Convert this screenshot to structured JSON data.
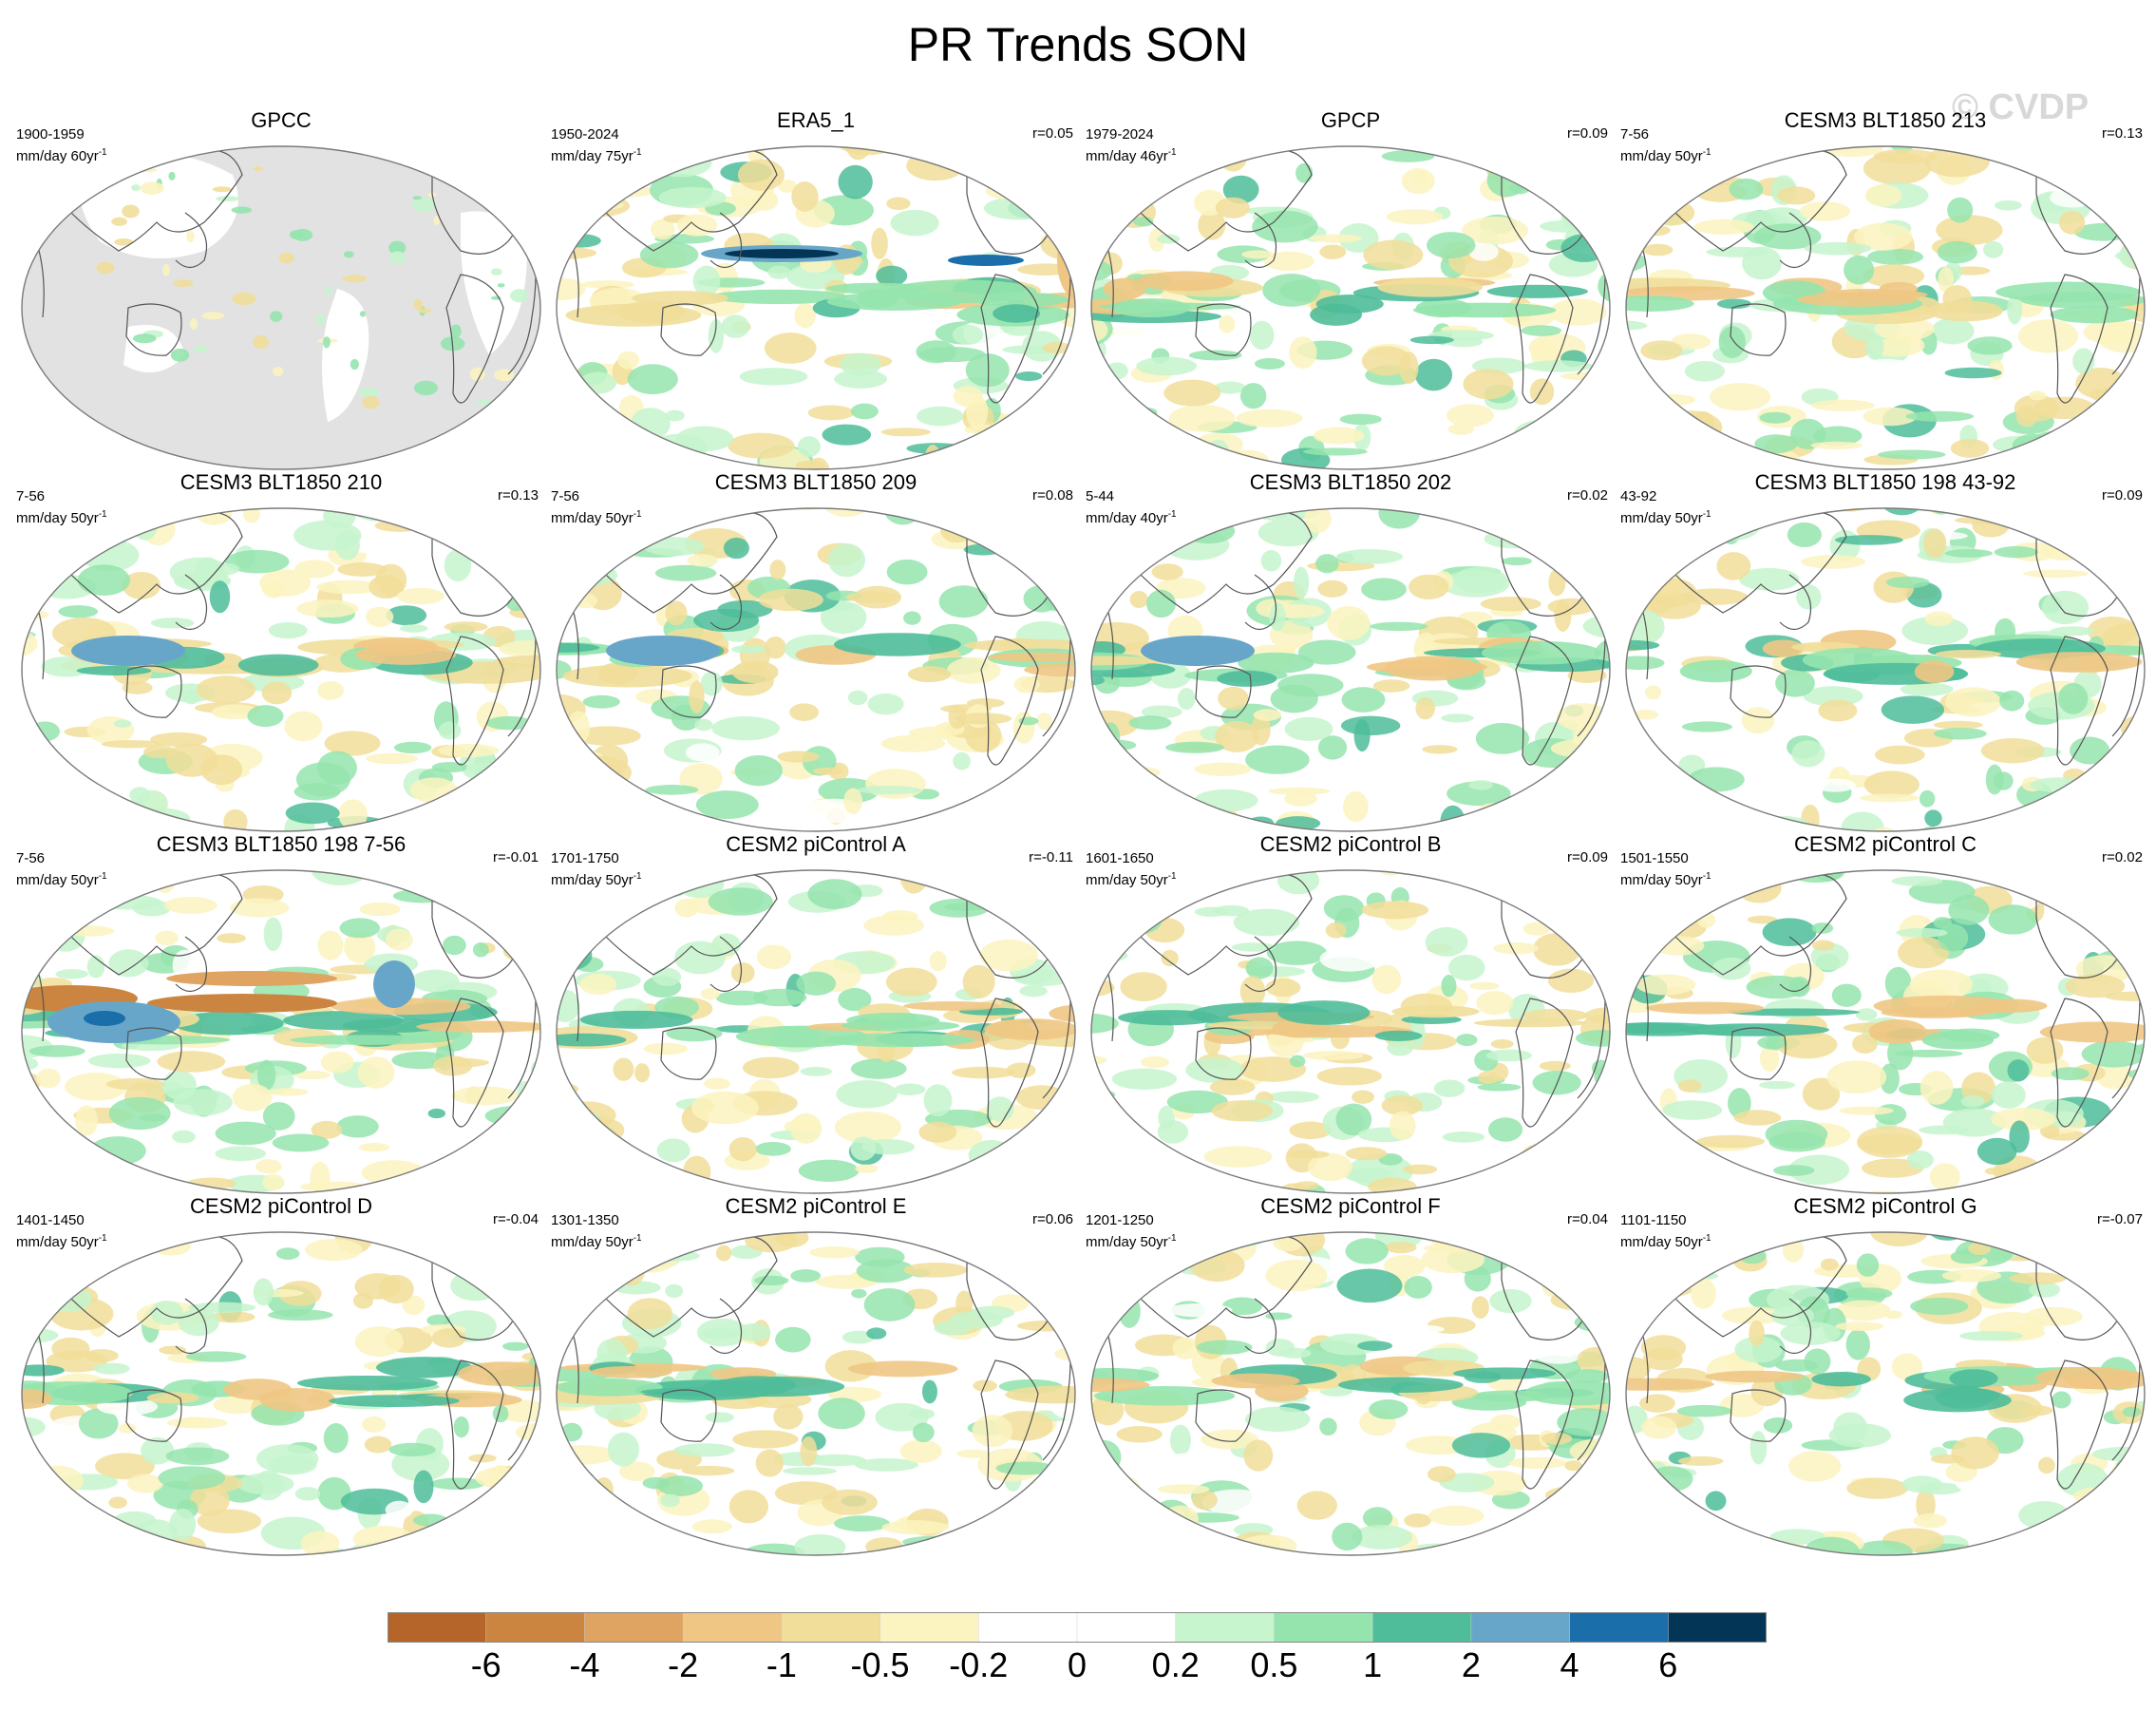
{
  "title": "PR Trends SON",
  "watermark": "© CVDP",
  "colors": {
    "land_missing": "#e2e2e2",
    "coastline": "#555555",
    "levels": [
      "#b5652a",
      "#cc8540",
      "#dfa462",
      "#efc684",
      "#f1de9a",
      "#fbf3c0",
      "#ffffff",
      "#ffffff",
      "#c6f5ce",
      "#95e4ae",
      "#4fbd9a",
      "#68a6c9",
      "#1a6eaa",
      "#033556"
    ]
  },
  "panels": [
    {
      "title": "GPCC",
      "period": "1900-1959",
      "units": "mm/day 60yr",
      "units_sup": "-1",
      "r": ""
    },
    {
      "title": "ERA5_1",
      "period": "1950-2024",
      "units": "mm/day 75yr",
      "units_sup": "-1",
      "r": "r=0.05"
    },
    {
      "title": "GPCP",
      "period": "1979-2024",
      "units": "mm/day 46yr",
      "units_sup": "-1",
      "r": "r=0.09"
    },
    {
      "title": "CESM3 BLT1850 213",
      "period": "7-56",
      "units": "mm/day 50yr",
      "units_sup": "-1",
      "r": "r=0.13"
    },
    {
      "title": "CESM3 BLT1850 210",
      "period": "7-56",
      "units": "mm/day 50yr",
      "units_sup": "-1",
      "r": "r=0.13"
    },
    {
      "title": "CESM3 BLT1850 209",
      "period": "7-56",
      "units": "mm/day 50yr",
      "units_sup": "-1",
      "r": "r=0.08"
    },
    {
      "title": "CESM3 BLT1850 202",
      "period": "5-44",
      "units": "mm/day 40yr",
      "units_sup": "-1",
      "r": "r=0.02"
    },
    {
      "title": "CESM3 BLT1850 198 43-92",
      "period": "43-92",
      "units": "mm/day 50yr",
      "units_sup": "-1",
      "r": "r=0.09"
    },
    {
      "title": "CESM3 BLT1850 198 7-56",
      "period": "7-56",
      "units": "mm/day 50yr",
      "units_sup": "-1",
      "r": "r=-0.01"
    },
    {
      "title": "CESM2 piControl A",
      "period": "1701-1750",
      "units": "mm/day 50yr",
      "units_sup": "-1",
      "r": "r=-0.11"
    },
    {
      "title": "CESM2 piControl B",
      "period": "1601-1650",
      "units": "mm/day 50yr",
      "units_sup": "-1",
      "r": "r=0.09"
    },
    {
      "title": "CESM2 piControl C",
      "period": "1501-1550",
      "units": "mm/day 50yr",
      "units_sup": "-1",
      "r": "r=0.02"
    },
    {
      "title": "CESM2 piControl D",
      "period": "1401-1450",
      "units": "mm/day 50yr",
      "units_sup": "-1",
      "r": "r=-0.04"
    },
    {
      "title": "CESM2 piControl E",
      "period": "1301-1350",
      "units": "mm/day 50yr",
      "units_sup": "-1",
      "r": "r=0.06"
    },
    {
      "title": "CESM2 piControl F",
      "period": "1201-1250",
      "units": "mm/day 50yr",
      "units_sup": "-1",
      "r": "r=0.04"
    },
    {
      "title": "CESM2 piControl G",
      "period": "1101-1150",
      "units": "mm/day 50yr",
      "units_sup": "-1",
      "r": "r=-0.07"
    }
  ],
  "chart_data": {
    "type": "heatmap",
    "title": "PR Trends SON",
    "colorbar": {
      "labels": [
        "-6",
        "-4",
        "-2",
        "-1",
        "-0.5",
        "-0.2",
        "0",
        "0.2",
        "0.5",
        "1",
        "2",
        "4",
        "6"
      ],
      "values": [
        -6,
        -4,
        -2,
        -1,
        -0.5,
        -0.2,
        0,
        0.2,
        0.5,
        1,
        2,
        4,
        6
      ]
    },
    "panels": [
      "GPCC",
      "ERA5_1",
      "GPCP",
      "CESM3 BLT1850 213",
      "CESM3 BLT1850 210",
      "CESM3 BLT1850 209",
      "CESM3 BLT1850 202",
      "CESM3 BLT1850 198 43-92",
      "CESM3 BLT1850 198 7-56",
      "CESM2 piControl A",
      "CESM2 piControl B",
      "CESM2 piControl C",
      "CESM2 piControl D",
      "CESM2 piControl E",
      "CESM2 piControl F",
      "CESM2 piControl G"
    ],
    "pattern_correlation": [
      null,
      0.05,
      0.09,
      0.13,
      0.13,
      0.08,
      0.02,
      0.09,
      -0.01,
      -0.11,
      0.09,
      0.02,
      -0.04,
      0.06,
      0.04,
      -0.07
    ]
  }
}
